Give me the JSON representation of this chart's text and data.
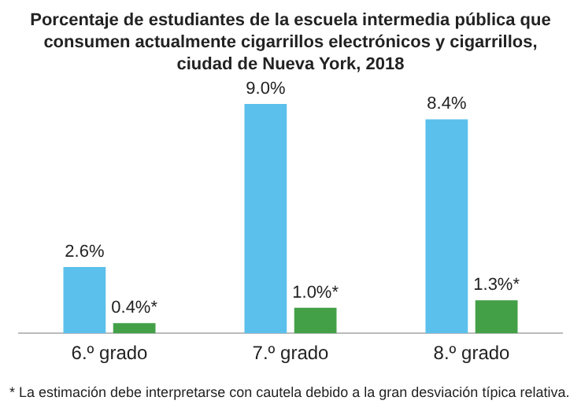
{
  "chart_data": {
    "type": "bar",
    "title": "Porcentaje de estudiantes de la escuela intermedia pública que consumen actualmente cigarrillos electrónicos y cigarrillos, ciudad de Nueva York, 2018",
    "categories": [
      "6.º grado",
      "7.º grado",
      "8.º grado"
    ],
    "series": [
      {
        "color": "#5bc0eb",
        "values": [
          2.6,
          9.0,
          8.4
        ],
        "value_labels": [
          "2.6%",
          "9.0%",
          "8.4%"
        ]
      },
      {
        "color": "#43a047",
        "values": [
          0.4,
          1.0,
          1.3
        ],
        "value_labels": [
          "0.4%*",
          "1.0%*",
          "1.3%*"
        ]
      }
    ],
    "annotations": [
      "* La estimación debe interpretarse con cautela debido a la gran desviación típica relativa."
    ],
    "grid": false,
    "legend": false
  }
}
